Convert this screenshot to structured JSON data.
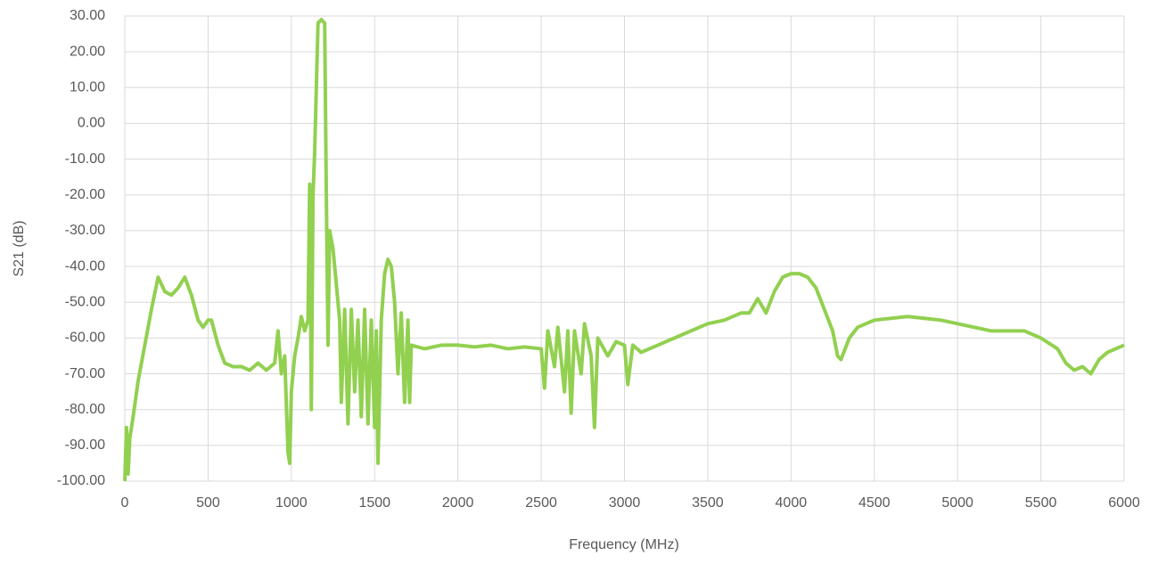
{
  "chart_data": {
    "type": "line",
    "x_label": "Frequency (MHz)",
    "y_label": "S21 (dB)",
    "color": "#92d050",
    "grid": true,
    "xlim": [
      0,
      6000
    ],
    "xticks": [
      0,
      500,
      1000,
      1500,
      2000,
      2500,
      3000,
      3500,
      4000,
      4500,
      5000,
      5500,
      6000
    ],
    "ylim": [
      -100,
      30
    ],
    "yticks": [
      {
        "value": -100,
        "label": "-100.00"
      },
      {
        "value": -90,
        "label": "-90.00"
      },
      {
        "value": -80,
        "label": "-80.00"
      },
      {
        "value": -70,
        "label": "-70.00"
      },
      {
        "value": -60,
        "label": "-60.00"
      },
      {
        "value": -50,
        "label": "-50.00"
      },
      {
        "value": -40,
        "label": "-40.00"
      },
      {
        "value": -30,
        "label": "-30.00"
      },
      {
        "value": -20,
        "label": "-20.00"
      },
      {
        "value": -10,
        "label": "-10.00"
      },
      {
        "value": 0,
        "label": "0.00"
      },
      {
        "value": 10,
        "label": "10.00"
      },
      {
        "value": 20,
        "label": "20.00"
      },
      {
        "value": 30,
        "label": "30.00"
      }
    ],
    "x": [
      0,
      10,
      20,
      30,
      50,
      80,
      120,
      160,
      200,
      240,
      280,
      320,
      360,
      400,
      440,
      470,
      500,
      520,
      560,
      600,
      650,
      700,
      750,
      800,
      850,
      900,
      920,
      940,
      960,
      980,
      990,
      1000,
      1020,
      1040,
      1060,
      1080,
      1100,
      1110,
      1120,
      1130,
      1140,
      1150,
      1160,
      1180,
      1200,
      1210,
      1220,
      1230,
      1250,
      1270,
      1290,
      1300,
      1320,
      1340,
      1360,
      1380,
      1400,
      1420,
      1440,
      1460,
      1480,
      1500,
      1510,
      1520,
      1540,
      1560,
      1580,
      1600,
      1620,
      1640,
      1660,
      1680,
      1700,
      1710,
      1720,
      1800,
      1900,
      2000,
      2100,
      2200,
      2300,
      2400,
      2500,
      2520,
      2540,
      2580,
      2600,
      2640,
      2660,
      2680,
      2700,
      2740,
      2760,
      2800,
      2820,
      2840,
      2900,
      2950,
      3000,
      3020,
      3050,
      3100,
      3200,
      3300,
      3400,
      3500,
      3600,
      3700,
      3750,
      3800,
      3850,
      3900,
      3950,
      4000,
      4050,
      4100,
      4150,
      4200,
      4250,
      4280,
      4300,
      4350,
      4400,
      4500,
      4600,
      4700,
      4800,
      4900,
      5000,
      5100,
      5200,
      5300,
      5400,
      5500,
      5600,
      5650,
      5700,
      5750,
      5800,
      5850,
      5900,
      5950,
      6000
    ],
    "values": [
      -100,
      -85,
      -98,
      -88,
      -82,
      -72,
      -62,
      -52,
      -43,
      -47,
      -48,
      -46,
      -43,
      -48,
      -55,
      -57,
      -55,
      -55,
      -62,
      -67,
      -68,
      -68,
      -69,
      -67,
      -69,
      -67,
      -58,
      -70,
      -65,
      -92,
      -95,
      -75,
      -65,
      -60,
      -54,
      -58,
      -55,
      -17,
      -80,
      -20,
      -8,
      10,
      28,
      29,
      28,
      -20,
      -62,
      -30,
      -35,
      -45,
      -55,
      -78,
      -52,
      -84,
      -52,
      -75,
      -55,
      -82,
      -52,
      -84,
      -55,
      -85,
      -58,
      -95,
      -55,
      -42,
      -38,
      -40,
      -50,
      -70,
      -53,
      -78,
      -55,
      -78,
      -62,
      -63,
      -62,
      -62,
      -62.5,
      -62,
      -63,
      -62.5,
      -63,
      -74,
      -58,
      -68,
      -57,
      -75,
      -58,
      -81,
      -58,
      -70,
      -56,
      -65,
      -85,
      -60,
      -65,
      -61,
      -62,
      -73,
      -62,
      -64,
      -62,
      -60,
      -58,
      -56,
      -55,
      -53,
      -53,
      -49,
      -53,
      -47,
      -43,
      -42,
      -42,
      -43,
      -46,
      -52,
      -58,
      -65,
      -66,
      -60,
      -57,
      -55,
      -54.5,
      -54,
      -54.5,
      -55,
      -56,
      -57,
      -58,
      -58,
      -58,
      -60,
      -63,
      -67,
      -69,
      -68,
      -70,
      -66,
      -64,
      -63,
      -62
    ]
  }
}
